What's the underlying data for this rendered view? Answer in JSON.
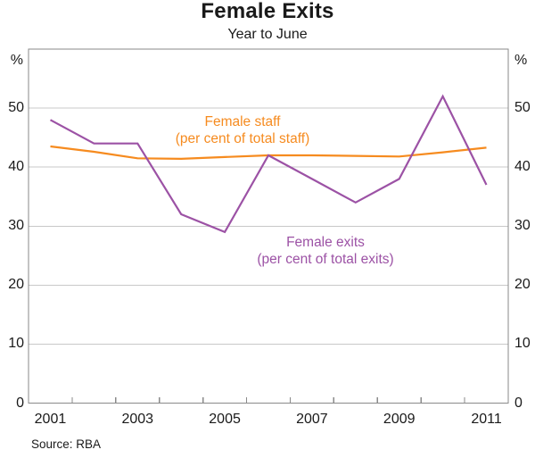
{
  "header": {
    "title": "Female Exits",
    "subtitle": "Year to June"
  },
  "axis": {
    "unit_left": "%",
    "unit_right": "%",
    "y_tick_labels": [
      "50",
      "40",
      "30",
      "20",
      "10",
      "0"
    ],
    "y_tick_values": [
      50,
      40,
      30,
      20,
      10,
      0
    ],
    "x_tick_labels": [
      "2001",
      "2003",
      "2005",
      "2007",
      "2009",
      "2011"
    ],
    "x_label_years": [
      2001,
      2003,
      2005,
      2007,
      2009,
      2011
    ]
  },
  "annotations": {
    "staff": {
      "line1": "Female staff",
      "line2": "(per cent of total staff)"
    },
    "exits": {
      "line1": "Female exits",
      "line2": "(per cent of total exits)"
    }
  },
  "footer": {
    "source": "Source: RBA"
  },
  "colors": {
    "staff": "#F68B1F",
    "exits": "#9C52A5",
    "grid": "#C8C8C8",
    "frame": "#8A8A8A",
    "text": "#1A1A1A"
  },
  "chart_data": {
    "type": "line",
    "title": "Female Exits",
    "subtitle": "Year to June",
    "x": [
      2001,
      2002,
      2003,
      2004,
      2005,
      2006,
      2007,
      2008,
      2009,
      2010,
      2011
    ],
    "series": [
      {
        "name": "Female staff (per cent of total staff)",
        "color_key": "staff",
        "values": [
          43.5,
          42.6,
          41.5,
          41.4,
          41.7,
          42.0,
          42.0,
          41.9,
          41.8,
          42.5,
          43.3
        ]
      },
      {
        "name": "Female exits (per cent of total exits)",
        "color_key": "exits",
        "values": [
          48,
          44,
          44,
          32,
          29,
          42,
          38,
          34,
          38,
          52,
          37
        ]
      }
    ],
    "ylabel": "%",
    "ylim": [
      0,
      60
    ],
    "y_tick_step": 10,
    "x_segments": [
      2000.5,
      2011.5
    ],
    "grid": true,
    "legend_position": "inline-annotations",
    "source": "Source: RBA"
  }
}
